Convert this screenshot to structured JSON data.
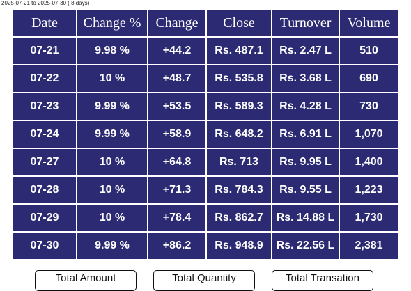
{
  "subtitle": "2025-07-21 to 2025-07-30 ( 8 days)",
  "table": {
    "headers": [
      "Date",
      "Change %",
      "Change",
      "Close",
      "Turnover",
      "Volume"
    ],
    "rows": [
      [
        "07-21",
        "9.98 %",
        "+44.2",
        "Rs. 487.1",
        "Rs. 2.47 L",
        "510"
      ],
      [
        "07-22",
        "10 %",
        "+48.7",
        "Rs. 535.8",
        "Rs. 3.68 L",
        "690"
      ],
      [
        "07-23",
        "9.99 %",
        "+53.5",
        "Rs. 589.3",
        "Rs. 4.28 L",
        "730"
      ],
      [
        "07-24",
        "9.99 %",
        "+58.9",
        "Rs. 648.2",
        "Rs. 6.91 L",
        "1,070"
      ],
      [
        "07-27",
        "10 %",
        "+64.8",
        "Rs. 713",
        "Rs. 9.95 L",
        "1,400"
      ],
      [
        "07-28",
        "10 %",
        "+71.3",
        "Rs. 784.3",
        "Rs. 9.55 L",
        "1,223"
      ],
      [
        "07-29",
        "10 %",
        "+78.4",
        "Rs. 862.7",
        "Rs. 14.88 L",
        "1,730"
      ],
      [
        "07-30",
        "9.99 %",
        "+86.2",
        "Rs. 948.9",
        "Rs. 22.56 L",
        "2,381"
      ]
    ]
  },
  "totals": [
    "Total Amount",
    "Total Quantity",
    "Total Transation"
  ]
}
